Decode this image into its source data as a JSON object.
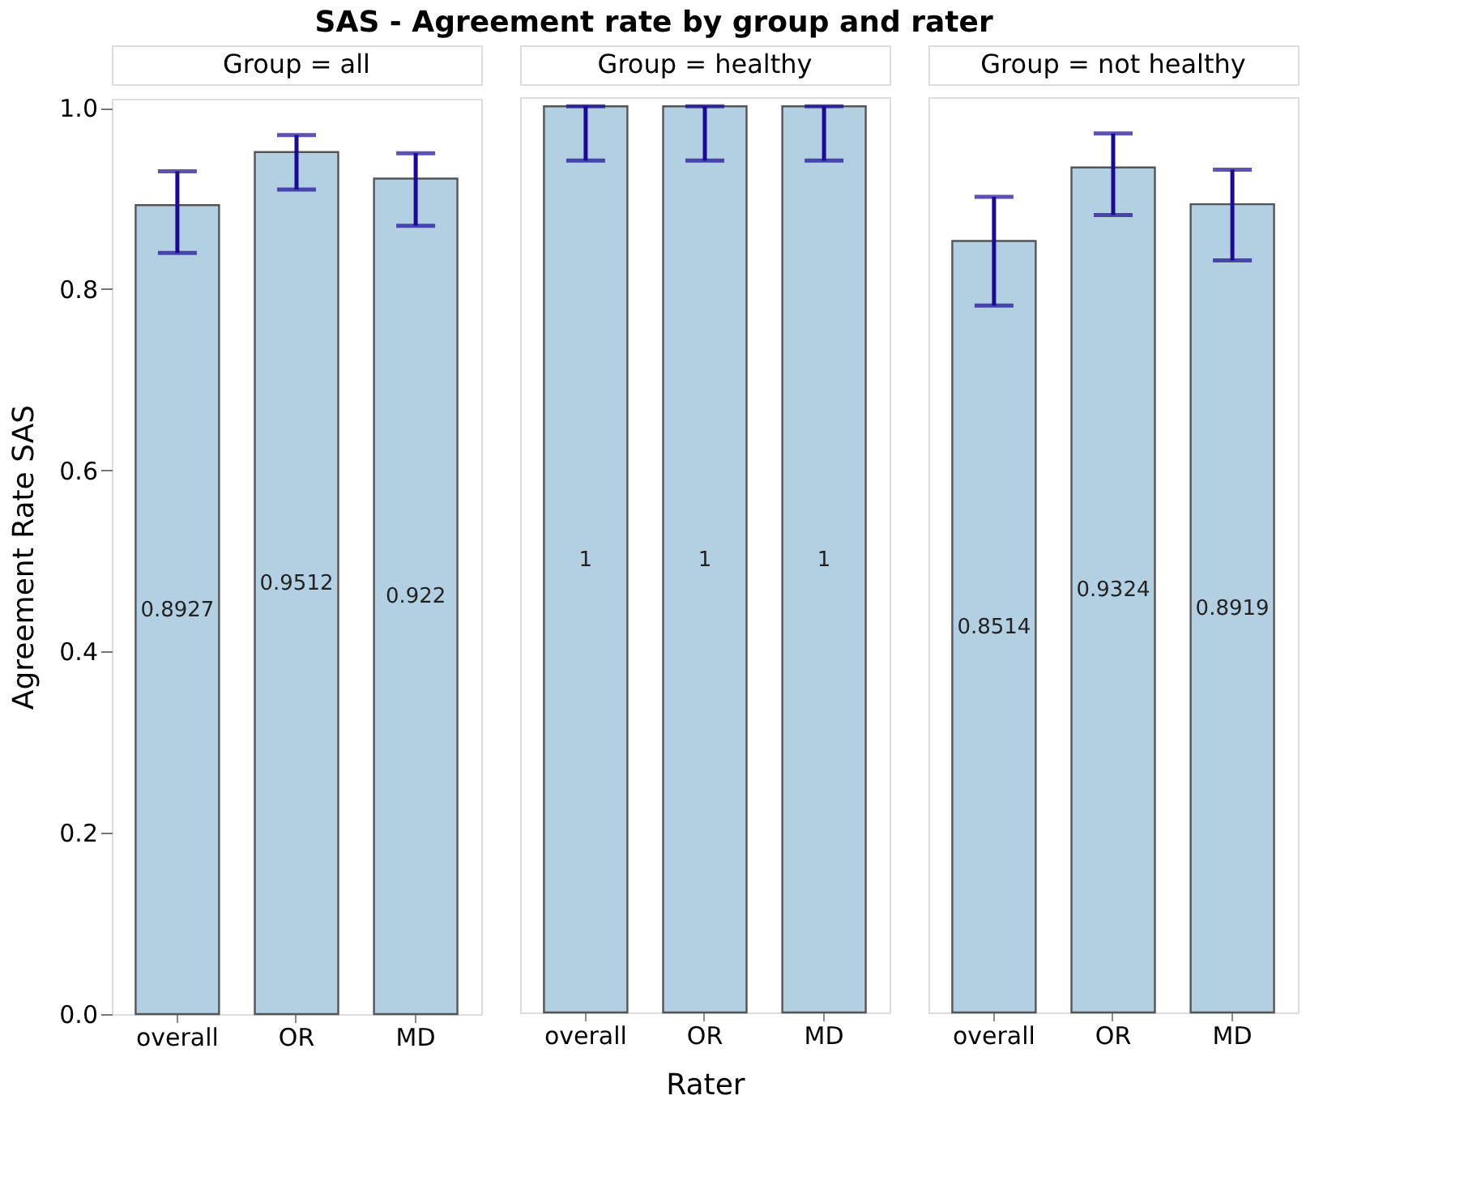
{
  "chart_data": [
    {
      "type": "bar",
      "title": "SAS - Agreement rate by group and rater",
      "subtitle": "Group = all",
      "ylabel": "Agreement Rate SAS",
      "categories": [
        "overall",
        "OR",
        "MD"
      ],
      "values": [
        0.8927,
        0.9512,
        0.922
      ],
      "errors": [
        [
          0.84,
          0.93
        ],
        [
          0.91,
          0.97
        ],
        [
          0.87,
          0.95
        ]
      ],
      "color": "#b3d0e2",
      "data_labels": true,
      "ylim": [
        0,
        1.01
      ],
      "yticks": [
        {
          "value": 0,
          "label": "0.0"
        },
        0.2,
        0.4,
        0.6,
        0.8,
        {
          "value": 1,
          "label": "1.0"
        }
      ],
      "grid": false,
      "legend": false
    },
    {
      "type": "bar",
      "subtitle": "Group = healthy",
      "xlabel": "Rater",
      "categories": [
        "overall",
        "OR",
        "MD"
      ],
      "values": [
        1,
        1,
        1
      ],
      "errors": [
        [
          0.94,
          1.0
        ],
        [
          0.94,
          1.0
        ],
        [
          0.94,
          1.0
        ]
      ],
      "color": "#b3d0e2",
      "data_labels": true,
      "ylim": [
        0,
        1.01
      ],
      "yticks": [
        0.0,
        0.2,
        0.4,
        0.6,
        0.8,
        1.0
      ],
      "tick_labels": "x",
      "grid": false,
      "legend": false
    },
    {
      "type": "bar",
      "subtitle": "Group = not healthy",
      "categories": [
        "overall",
        "OR",
        "MD"
      ],
      "values": [
        0.8514,
        0.9324,
        0.8919
      ],
      "errors": [
        [
          0.78,
          0.9
        ],
        [
          0.88,
          0.97
        ],
        [
          0.83,
          0.93
        ]
      ],
      "color": "#b3d0e2",
      "data_labels": true,
      "ylim": [
        0,
        1.01
      ],
      "yticks": [
        0.0,
        0.2,
        0.4,
        0.6,
        0.8,
        1.0
      ],
      "tick_labels": "x",
      "grid": false,
      "legend": false
    }
  ]
}
